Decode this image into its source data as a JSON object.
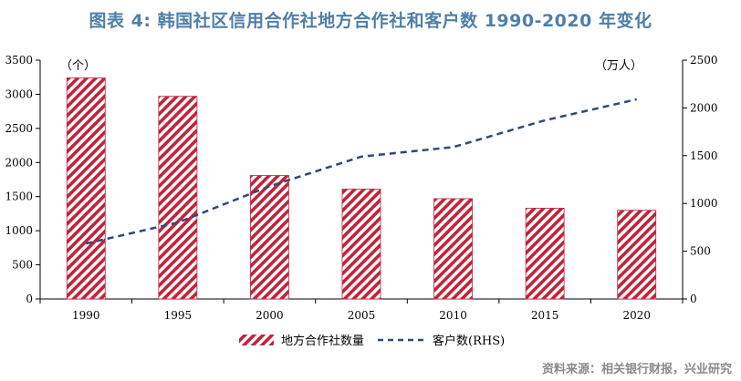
{
  "title": "图表 4: 韩国社区信用合作社地方合作社和客户数 1990-2020 年变化",
  "source": "资料来源：相关银行财报，兴业研究",
  "colors": {
    "bar": "#c0243a",
    "line": "#2f4a7a",
    "title": "#4f7fa8"
  },
  "chart_data": {
    "type": "bar",
    "categories": [
      "1990",
      "1995",
      "2000",
      "2005",
      "2010",
      "2015",
      "2020"
    ],
    "series": [
      {
        "name": "地方合作社数量",
        "type": "bar",
        "axis": "left",
        "values": [
          3240,
          2970,
          1810,
          1610,
          1470,
          1330,
          1300
        ]
      },
      {
        "name": "客户数(RHS)",
        "type": "line",
        "style": "dashed",
        "axis": "right",
        "values": [
          580,
          800,
          1180,
          1490,
          1590,
          1870,
          2090
        ]
      }
    ],
    "left_axis": {
      "unit": "（个）",
      "ylim": [
        0,
        3500
      ],
      "ticks": [
        0,
        500,
        1000,
        1500,
        2000,
        2500,
        3000,
        3500
      ]
    },
    "right_axis": {
      "unit": "（万人）",
      "ylim": [
        0,
        2500
      ],
      "ticks": [
        0,
        500,
        1000,
        1500,
        2000,
        2500
      ]
    },
    "legend_position": "bottom-center",
    "grid": false
  }
}
